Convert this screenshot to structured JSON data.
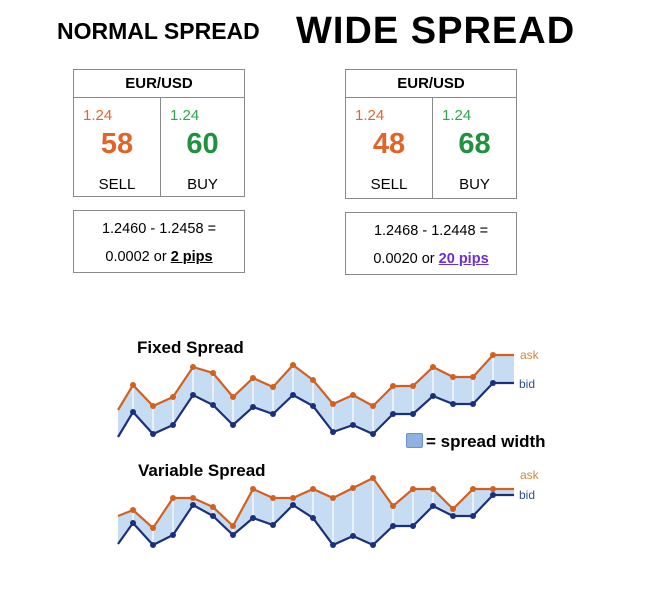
{
  "titles": {
    "normal": "NORMAL SPREAD",
    "wide": "WIDE SPREAD"
  },
  "normal_quote": {
    "pair": "EUR/USD",
    "sell": {
      "prefix": "1.24",
      "pips": "58",
      "label": "SELL"
    },
    "buy": {
      "prefix": "1.24",
      "pips": "60",
      "label": "BUY"
    },
    "calc_line1": "1.2460 - 1.2458 =",
    "calc_value": "0.0002 or ",
    "calc_pips": "2 pips"
  },
  "wide_quote": {
    "pair": "EUR/USD",
    "sell": {
      "prefix": "1.24",
      "pips": "48",
      "label": "SELL"
    },
    "buy": {
      "prefix": "1.24",
      "pips": "68",
      "label": "BUY"
    },
    "calc_line1": "1.2468 - 1.2448 =",
    "calc_value": "0.0020 or ",
    "calc_pips": "20 pips"
  },
  "charts": {
    "fixed_title": "Fixed Spread",
    "variable_title": "Variable Spread",
    "ask_label": "ask",
    "bid_label": "bid",
    "legend_label": "= spread width",
    "colors": {
      "ask": "#d2601f",
      "bid": "#1c2f7a",
      "fill": "#c6dcf3"
    }
  }
}
